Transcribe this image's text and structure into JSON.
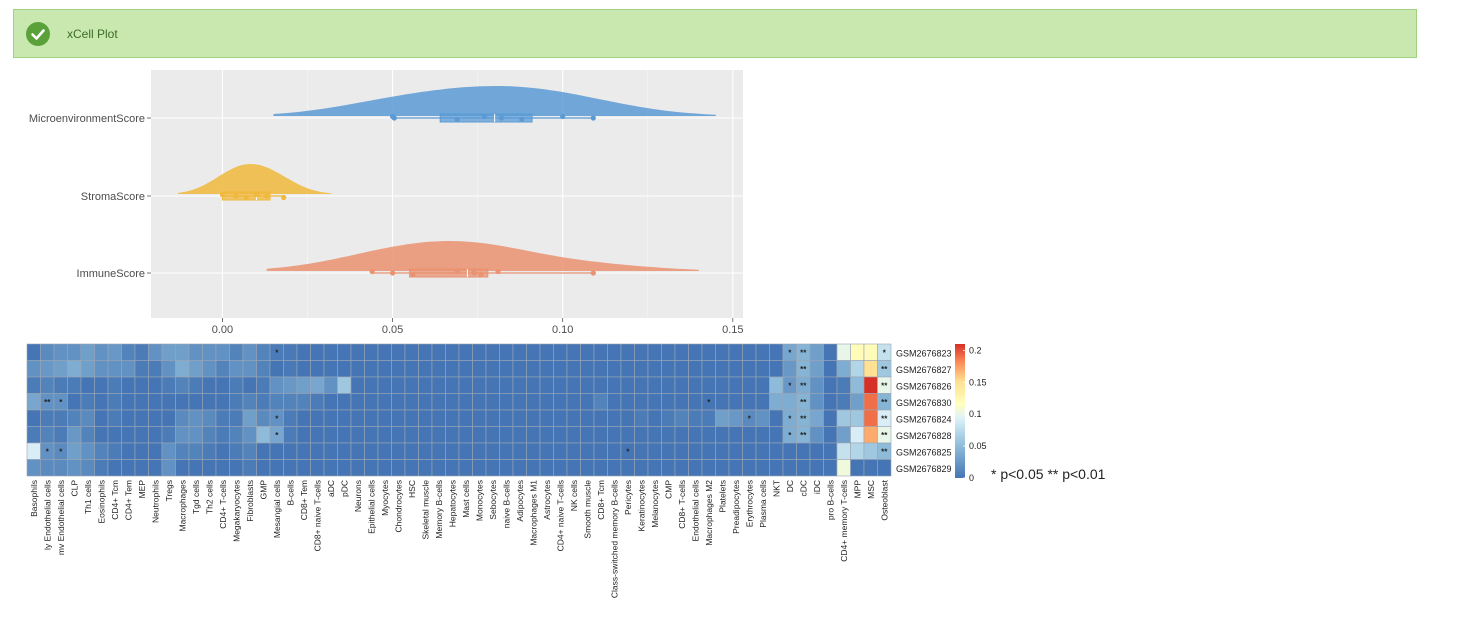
{
  "banner": {
    "title": "xCell Plot",
    "icon": "check-circle-icon",
    "color": "#c9e8b0"
  },
  "chart_data": [
    {
      "type": "raincloud",
      "title": "",
      "xlabel": "",
      "ylabel": "",
      "xlim": [
        -0.021,
        0.153
      ],
      "xticks": [
        0.0,
        0.05,
        0.1,
        0.15
      ],
      "xtick_labels": [
        "0.00",
        "0.05",
        "0.10",
        "0.15"
      ],
      "series": [
        {
          "name": "MicroenvironmentScore",
          "color": "#5b9bd5",
          "points": [
            0.05,
            0.0505,
            0.069,
            0.077,
            0.082,
            0.088,
            0.1,
            0.109
          ],
          "box": {
            "min": 0.05,
            "q1": 0.064,
            "median": 0.08,
            "q3": 0.091,
            "max": 0.109
          },
          "density_range": [
            0.015,
            0.145
          ]
        },
        {
          "name": "StromaScore",
          "color": "#f0b83c",
          "points": [
            0.0,
            0.004,
            0.007,
            0.01,
            0.013,
            0.018
          ],
          "box": {
            "min": 0.0,
            "q1": 0.0,
            "median": 0.01,
            "q3": 0.014,
            "max": 0.018
          },
          "density_range": [
            -0.013,
            0.032
          ]
        },
        {
          "name": "ImmuneScore",
          "color": "#ea9271",
          "points": [
            0.044,
            0.05,
            0.056,
            0.069,
            0.074,
            0.076,
            0.081,
            0.109
          ],
          "box": {
            "min": 0.044,
            "q1": 0.055,
            "median": 0.072,
            "q3": 0.078,
            "max": 0.109
          },
          "density_range": [
            0.013,
            0.14
          ]
        }
      ]
    },
    {
      "type": "heatmap",
      "title": "",
      "legend_ticks": [
        "0.2",
        "0.15",
        "0.1",
        "0.05",
        "0"
      ],
      "legend_range": [
        0,
        0.21
      ],
      "rows": [
        "GSM2676823",
        "GSM2676827",
        "GSM2676826",
        "GSM2676830",
        "GSM2676824",
        "GSM2676828",
        "GSM2676825",
        "GSM2676829"
      ],
      "columns": [
        "Basophils",
        "ly Endothelial cells",
        "mv Endothelial cells",
        "CLP",
        "Th1 cells",
        "Eosinophils",
        "CD4+ Tcm",
        "CD4+ Tem",
        "MEP",
        "Neutrophils",
        "Tregs",
        "Macrophages",
        "Tgd cells",
        "Th2 cells",
        "CD4+ T-cells",
        "Megakaryocytes",
        "Fibroblasts",
        "GMP",
        "Mesangial cells",
        "B-cells",
        "CD8+ Tem",
        "CD8+ naive T-cells",
        "aDC",
        "pDC",
        "Neurons",
        "Epithelial cells",
        "Myocytes",
        "Chondrocytes",
        "HSC",
        "Skeletal muscle",
        "Memory B-cells",
        "Hepatocytes",
        "Mast cells",
        "Monocytes",
        "Sebocytes",
        "naive B-cells",
        "Adipocytes",
        "Macrophages M1",
        "Astrocytes",
        "CD4+ naive T-cells",
        "NK cells",
        "Smooth muscle",
        "CD8+ Tcm",
        "Class-switched memory B-cells",
        "Pericytes",
        "Keratinocytes",
        "Melanocytes",
        "CMP",
        "CD8+ T-cells",
        "Endothelial cells",
        "Macrophages M2",
        "Platelets",
        "Preadipocytes",
        "Erythrocytes",
        "Plasma cells",
        "NKT",
        "DC",
        "cDC",
        "iDC",
        "pro B-cells",
        "CD4+ memory T-cells",
        "MPP",
        "MSC",
        "Osteoblast"
      ],
      "values": [
        [
          0.0,
          0.015,
          0.02,
          0.02,
          0.03,
          0.02,
          0.025,
          0.01,
          0.005,
          0.02,
          0.03,
          0.03,
          0.02,
          0.02,
          0.02,
          0.01,
          0.02,
          0.01,
          0.005,
          0.003,
          0.0,
          0.0,
          0.0,
          0.0,
          0.0,
          0.0,
          0.0,
          0.0,
          0.0,
          0.0,
          0.0,
          0.0,
          0.0,
          0.0,
          0.0,
          0.0,
          0.0,
          0.0,
          0.0,
          0.0,
          0.0,
          0.0,
          0.0,
          0.0,
          0.0,
          0.0,
          0.0,
          0.0,
          0.0,
          0.0,
          0.0,
          0.0,
          0.0,
          0.0,
          0.0,
          0.0,
          0.035,
          0.045,
          0.03,
          0.0,
          0.1,
          0.12,
          0.12,
          0.08
        ],
        [
          0.02,
          0.025,
          0.03,
          0.04,
          0.03,
          0.02,
          0.02,
          0.02,
          0.005,
          0.005,
          0.02,
          0.04,
          0.03,
          0.02,
          0.01,
          0.02,
          0.02,
          0.01,
          0.0,
          0.003,
          0.0,
          0.0,
          0.0,
          0.0,
          0.0,
          0.0,
          0.0,
          0.0,
          0.0,
          0.0,
          0.0,
          0.0,
          0.0,
          0.0,
          0.0,
          0.0,
          0.0,
          0.0,
          0.0,
          0.0,
          0.0,
          0.0,
          0.0,
          0.0,
          0.0,
          0.0,
          0.0,
          0.0,
          0.0,
          0.0,
          0.0,
          0.0,
          0.0,
          0.0,
          0.0,
          0.0,
          0.025,
          0.045,
          0.03,
          0.0,
          0.04,
          0.07,
          0.15,
          0.06
        ],
        [
          0.005,
          0.01,
          0.005,
          0.005,
          0.0,
          0.0,
          0.005,
          0.0,
          0.0,
          0.0,
          0.005,
          0.01,
          0.005,
          0.0,
          0.0,
          0.005,
          0.0,
          0.005,
          0.02,
          0.025,
          0.03,
          0.035,
          0.02,
          0.06,
          0.0,
          0.0,
          0.0,
          0.0,
          0.0,
          0.0,
          0.0,
          0.0,
          0.0,
          0.0,
          0.0,
          0.0,
          0.0,
          0.0,
          0.0,
          0.0,
          0.0,
          0.0,
          0.0,
          0.0,
          0.0,
          0.0,
          0.0,
          0.0,
          0.0,
          0.0,
          0.0,
          0.0,
          0.0,
          0.0,
          0.0,
          0.05,
          0.025,
          0.04,
          0.02,
          0.0,
          0.005,
          0.05,
          0.21,
          0.1
        ],
        [
          0.035,
          0.02,
          0.02,
          0.0,
          0.005,
          0.0,
          0.005,
          0.0,
          0.0,
          0.0,
          0.0,
          0.0,
          0.0,
          0.0,
          0.0,
          0.005,
          0.01,
          0.005,
          0.01,
          0.01,
          0.01,
          0.005,
          0.0,
          0.0,
          0.0,
          0.0,
          0.0,
          0.0,
          0.0,
          0.0,
          0.0,
          0.0,
          0.0,
          0.0,
          0.0,
          0.0,
          0.0,
          0.0,
          0.0,
          0.0,
          0.0,
          0.0,
          0.01,
          0.0,
          0.0,
          0.0,
          0.0,
          0.0,
          0.0,
          0.0,
          0.0,
          0.0,
          0.0,
          0.0,
          0.0,
          0.04,
          0.04,
          0.045,
          0.02,
          0.0,
          0.005,
          0.03,
          0.19,
          0.045
        ],
        [
          0.0,
          0.005,
          0.005,
          0.01,
          0.015,
          0.0,
          0.005,
          0.0,
          0.0,
          0.0,
          0.0,
          0.015,
          0.02,
          0.015,
          0.005,
          0.005,
          0.03,
          0.015,
          0.02,
          0.005,
          0.0,
          0.0,
          0.0,
          0.0,
          0.0,
          0.0,
          0.0,
          0.0,
          0.0,
          0.0,
          0.0,
          0.0,
          0.0,
          0.0,
          0.0,
          0.0,
          0.0,
          0.0,
          0.0,
          0.0,
          0.0,
          0.0,
          0.0,
          0.0,
          0.0,
          0.005,
          0.0,
          0.005,
          0.01,
          0.005,
          0.005,
          0.03,
          0.025,
          0.015,
          0.02,
          0.0,
          0.04,
          0.045,
          0.035,
          0.0,
          0.06,
          0.06,
          0.19,
          0.09
        ],
        [
          0.005,
          0.01,
          0.005,
          0.025,
          0.01,
          0.0,
          0.0,
          0.0,
          0.0,
          0.0,
          0.005,
          0.02,
          0.02,
          0.01,
          0.005,
          0.01,
          0.02,
          0.05,
          0.035,
          0.005,
          0.0,
          0.0,
          0.0,
          0.0,
          0.0,
          0.0,
          0.0,
          0.0,
          0.0,
          0.0,
          0.0,
          0.0,
          0.0,
          0.0,
          0.0,
          0.0,
          0.0,
          0.0,
          0.0,
          0.0,
          0.0,
          0.0,
          0.0,
          0.0,
          0.0,
          0.0,
          0.0,
          0.0,
          0.0,
          0.0,
          0.0,
          0.0,
          0.0,
          0.0,
          0.0,
          0.0,
          0.04,
          0.045,
          0.02,
          0.0,
          0.03,
          0.09,
          0.17,
          0.1
        ],
        [
          0.09,
          0.02,
          0.015,
          0.03,
          0.02,
          0.01,
          0.005,
          0.0,
          0.0,
          0.0,
          0.02,
          0.01,
          0.01,
          0.005,
          0.0,
          0.005,
          0.01,
          0.0,
          0.0,
          0.0,
          0.0,
          0.0,
          0.0,
          0.0,
          0.0,
          0.0,
          0.0,
          0.0,
          0.0,
          0.0,
          0.0,
          0.0,
          0.0,
          0.0,
          0.0,
          0.0,
          0.0,
          0.0,
          0.0,
          0.0,
          0.0,
          0.0,
          0.0,
          0.0,
          0.0,
          0.0,
          0.0,
          0.0,
          0.0,
          0.0,
          0.0,
          0.0,
          0.0,
          0.0,
          0.0,
          0.0,
          0.0,
          0.0,
          0.0,
          0.0,
          0.08,
          0.07,
          0.06,
          0.05
        ],
        [
          0.02,
          0.015,
          0.015,
          0.02,
          0.015,
          0.005,
          0.0,
          0.0,
          0.0,
          0.0,
          0.02,
          0.0,
          0.0,
          0.0,
          0.0,
          0.0,
          0.005,
          0.0,
          0.0,
          0.0,
          0.0,
          0.0,
          0.0,
          0.0,
          0.0,
          0.0,
          0.0,
          0.0,
          0.0,
          0.0,
          0.0,
          0.0,
          0.0,
          0.0,
          0.0,
          0.0,
          0.0,
          0.0,
          0.0,
          0.0,
          0.0,
          0.0,
          0.0,
          0.0,
          0.0,
          0.0,
          0.0,
          0.0,
          0.0,
          0.0,
          0.0,
          0.0,
          0.0,
          0.0,
          0.0,
          0.0,
          0.0,
          0.0,
          0.0,
          0.0,
          0.105,
          0.0,
          0.0,
          0.0
        ]
      ],
      "significance": [
        {
          "row": 0,
          "col": 18,
          "mark": "*"
        },
        {
          "row": 0,
          "col": 56,
          "mark": "*"
        },
        {
          "row": 0,
          "col": 57,
          "mark": "**"
        },
        {
          "row": 0,
          "col": 63,
          "mark": "*"
        },
        {
          "row": 1,
          "col": 57,
          "mark": "**"
        },
        {
          "row": 1,
          "col": 63,
          "mark": "**"
        },
        {
          "row": 2,
          "col": 56,
          "mark": "*"
        },
        {
          "row": 2,
          "col": 57,
          "mark": "**"
        },
        {
          "row": 2,
          "col": 63,
          "mark": "**"
        },
        {
          "row": 3,
          "col": 1,
          "mark": "**"
        },
        {
          "row": 3,
          "col": 2,
          "mark": "*"
        },
        {
          "row": 3,
          "col": 50,
          "mark": "*"
        },
        {
          "row": 3,
          "col": 57,
          "mark": "**"
        },
        {
          "row": 3,
          "col": 63,
          "mark": "**"
        },
        {
          "row": 4,
          "col": 18,
          "mark": "*"
        },
        {
          "row": 4,
          "col": 53,
          "mark": "*"
        },
        {
          "row": 4,
          "col": 56,
          "mark": "*"
        },
        {
          "row": 4,
          "col": 57,
          "mark": "**"
        },
        {
          "row": 4,
          "col": 63,
          "mark": "**"
        },
        {
          "row": 5,
          "col": 18,
          "mark": "*"
        },
        {
          "row": 5,
          "col": 56,
          "mark": "*"
        },
        {
          "row": 5,
          "col": 57,
          "mark": "**"
        },
        {
          "row": 5,
          "col": 63,
          "mark": "**"
        },
        {
          "row": 6,
          "col": 1,
          "mark": "*"
        },
        {
          "row": 6,
          "col": 2,
          "mark": "*"
        },
        {
          "row": 6,
          "col": 44,
          "mark": "*"
        },
        {
          "row": 6,
          "col": 63,
          "mark": "**"
        }
      ],
      "footnote": "* p<0.05 ** p<0.01"
    }
  ]
}
